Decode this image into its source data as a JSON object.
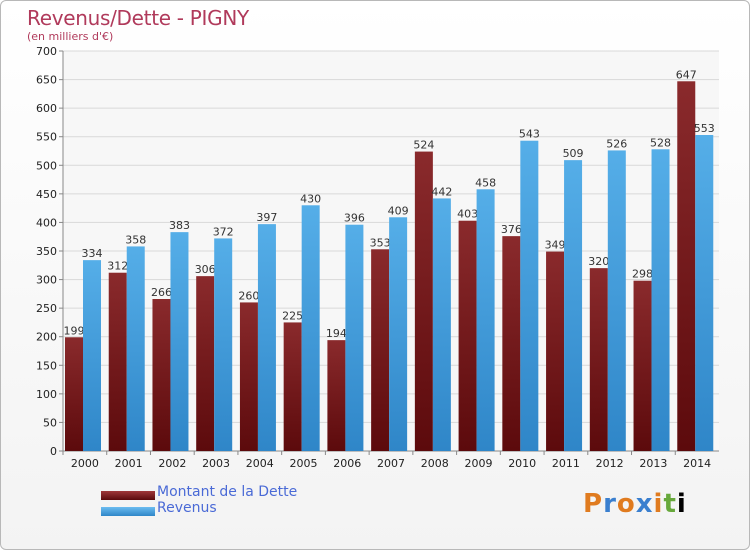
{
  "header": {
    "title": "Revenus/Dette - PIGNY",
    "subtitle": "(en milliers d'€)"
  },
  "logo": {
    "text": "Proxiti"
  },
  "colors": {
    "dette": "#7a1b1d",
    "revenus": "#4aa3e0",
    "axis_text": "#222222",
    "grid": "#d9d9d9"
  },
  "chart_data": {
    "type": "bar",
    "title": "Revenus/Dette - PIGNY",
    "subtitle": "(en milliers d'€)",
    "categories": [
      "2000",
      "2001",
      "2002",
      "2003",
      "2004",
      "2005",
      "2006",
      "2007",
      "2008",
      "2009",
      "2010",
      "2011",
      "2012",
      "2013",
      "2014"
    ],
    "series": [
      {
        "name": "Montant de la Dette",
        "values": [
          199,
          312,
          266,
          306,
          260,
          225,
          194,
          353,
          524,
          403,
          376,
          349,
          320,
          298,
          647
        ]
      },
      {
        "name": "Revenus",
        "values": [
          334,
          358,
          383,
          372,
          397,
          430,
          396,
          409,
          442,
          458,
          543,
          509,
          526,
          528,
          553
        ]
      }
    ],
    "ylim": [
      0,
      700
    ],
    "yticks": [
      0,
      50,
      100,
      150,
      200,
      250,
      300,
      350,
      400,
      450,
      500,
      550,
      600,
      650,
      700
    ],
    "grid": true,
    "legend": "bottom-left"
  }
}
